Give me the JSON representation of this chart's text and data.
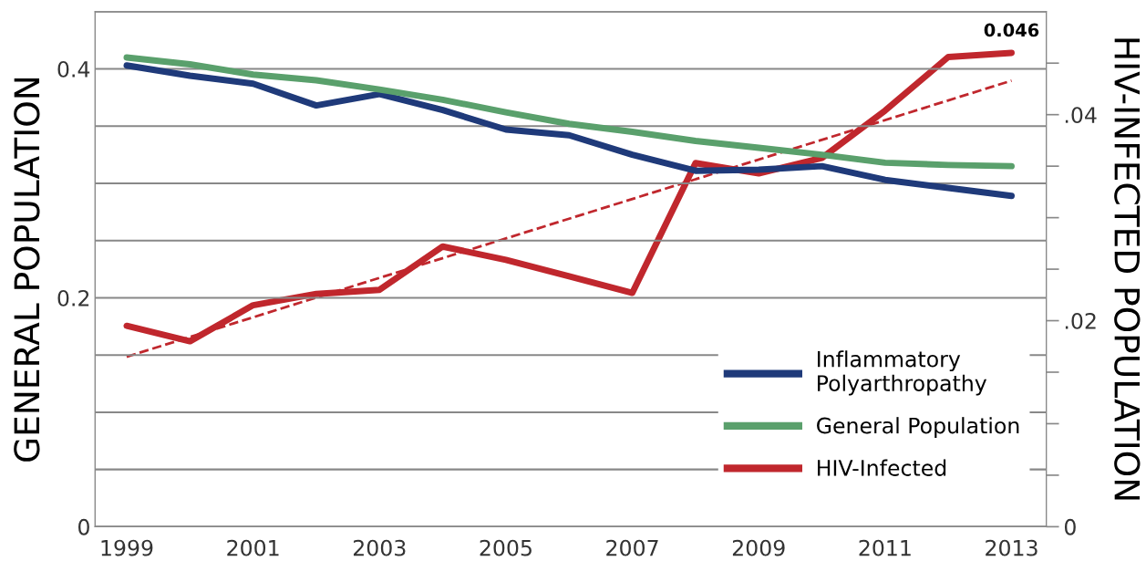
{
  "chart_data": {
    "type": "line",
    "x": [
      1999,
      2000,
      2001,
      2002,
      2003,
      2004,
      2005,
      2006,
      2007,
      2008,
      2009,
      2010,
      2011,
      2012,
      2013
    ],
    "ylabel": "GENERAL POPULATION",
    "y2label": "HIV-INFECTED POPULATION",
    "series": [
      {
        "name": "Inflammatory\nPolyarthropathy",
        "color": "#1f3a7a",
        "values": [
          0.403,
          0.394,
          0.387,
          0.368,
          0.378,
          0.364,
          0.347,
          0.342,
          0.325,
          0.311,
          0.312,
          0.315,
          0.303,
          0.296,
          0.289
        ]
      },
      {
        "name": "General Population",
        "color": "#5aa06c",
        "values": [
          0.41,
          0.404,
          0.395,
          0.39,
          0.382,
          0.373,
          0.362,
          0.352,
          0.345,
          0.337,
          0.331,
          0.325,
          0.318,
          0.316,
          0.315
        ]
      },
      {
        "name": "HIV-Infected",
        "color": "#c0272d",
        "axis": "y2",
        "values": [
          0.0195,
          0.018,
          0.0215,
          0.0226,
          0.023,
          0.0272,
          0.0259,
          0.0243,
          0.0227,
          0.0353,
          0.0343,
          0.0358,
          0.0404,
          0.0456,
          0.046
        ],
        "value_labels": [
          null,
          null,
          null,
          null,
          null,
          null,
          null,
          null,
          null,
          null,
          null,
          null,
          null,
          null,
          "0.046"
        ]
      },
      {
        "color": "#c0272d",
        "axis": "y2",
        "line_style": "dashed",
        "x": [
          1999,
          2013
        ],
        "values": [
          0.0165,
          0.0433
        ]
      }
    ],
    "xlim": [
      1998.5,
      2013.55
    ],
    "xticks": [
      1999,
      2001,
      2003,
      2005,
      2007,
      2009,
      2011,
      2013
    ],
    "ylim": [
      0,
      0.45
    ],
    "yticks": [
      0,
      {
        "value": 0.05,
        "label": null
      },
      {
        "value": 0.1,
        "label": null
      },
      {
        "value": 0.15,
        "label": null
      },
      0.2,
      {
        "value": 0.25,
        "label": null
      },
      {
        "value": 0.3,
        "label": null
      },
      {
        "value": 0.35,
        "label": null
      },
      0.4,
      {
        "value": 0.45,
        "label": null
      }
    ],
    "y2lim": [
      0,
      0.05
    ],
    "y2ticks": [
      0,
      {
        "value": 0.005,
        "label": null
      },
      {
        "value": 0.01,
        "label": null
      },
      {
        "value": 0.015,
        "label": null
      },
      {
        "value": 0.02,
        "label": ".02"
      },
      {
        "value": 0.025,
        "label": null
      },
      {
        "value": 0.03,
        "label": null
      },
      {
        "value": 0.035,
        "label": null
      },
      {
        "value": 0.04,
        "label": ".04"
      },
      {
        "value": 0.045,
        "label": null
      }
    ],
    "grid": "y",
    "legend": "bottom right",
    "line_style": "solid",
    "marker": "none"
  }
}
